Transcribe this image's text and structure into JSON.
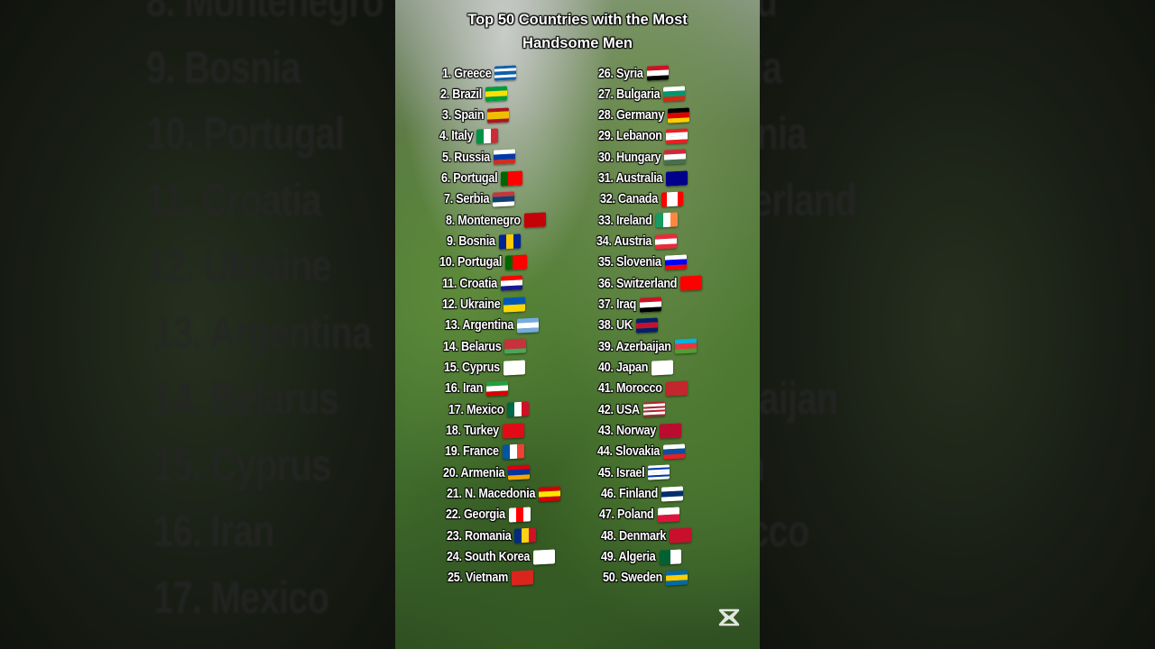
{
  "title_line1": "Top 50 Countries with the Most",
  "title_line2": "Handsome Men",
  "watermark_icon": "capcut-logo-icon",
  "countries": [
    {
      "label": "1. Greece",
      "flag": {
        "dir": "h",
        "colors": [
          "#0d5eaf",
          "#ffffff",
          "#0d5eaf",
          "#ffffff",
          "#0d5eaf"
        ]
      }
    },
    {
      "label": "2. Brazil",
      "flag": {
        "dir": "h",
        "colors": [
          "#009c3b",
          "#ffdf00",
          "#009c3b"
        ]
      }
    },
    {
      "label": "3. Spain",
      "flag": {
        "dir": "h",
        "colors": [
          "#aa151b",
          "#f1bf00",
          "#f1bf00",
          "#aa151b"
        ]
      }
    },
    {
      "label": "4. Italy",
      "flag": {
        "dir": "v",
        "colors": [
          "#009246",
          "#ffffff",
          "#ce2b37"
        ]
      }
    },
    {
      "label": "5. Russia",
      "flag": {
        "dir": "h",
        "colors": [
          "#ffffff",
          "#0039a6",
          "#d52b1e"
        ]
      }
    },
    {
      "label": "6. Portugal",
      "flag": {
        "dir": "v",
        "colors": [
          "#006600",
          "#ff0000",
          "#ff0000"
        ]
      }
    },
    {
      "label": "7. Serbia",
      "flag": {
        "dir": "h",
        "colors": [
          "#c6363c",
          "#0c4076",
          "#ffffff"
        ]
      }
    },
    {
      "label": "8. Montenegro",
      "flag": {
        "dir": "h",
        "colors": [
          "#c40308"
        ]
      }
    },
    {
      "label": "9. Bosnia",
      "flag": {
        "dir": "v",
        "colors": [
          "#002395",
          "#fecb00",
          "#002395"
        ]
      }
    },
    {
      "label": "10. Portugal",
      "flag": {
        "dir": "v",
        "colors": [
          "#006600",
          "#ff0000",
          "#ff0000"
        ]
      }
    },
    {
      "label": "11. Croatia",
      "flag": {
        "dir": "h",
        "colors": [
          "#ff0000",
          "#ffffff",
          "#171796"
        ]
      }
    },
    {
      "label": "12. Ukraine",
      "flag": {
        "dir": "h",
        "colors": [
          "#0057b7",
          "#ffd700"
        ]
      }
    },
    {
      "label": "13. Argentina",
      "flag": {
        "dir": "h",
        "colors": [
          "#74acdf",
          "#ffffff",
          "#74acdf"
        ]
      }
    },
    {
      "label": "14. Belarus",
      "flag": {
        "dir": "h",
        "colors": [
          "#c8313e",
          "#c8313e",
          "#4aa657"
        ]
      }
    },
    {
      "label": "15. Cyprus",
      "flag": {
        "dir": "h",
        "colors": [
          "#ffffff"
        ]
      }
    },
    {
      "label": "16. Iran",
      "flag": {
        "dir": "h",
        "colors": [
          "#239f40",
          "#ffffff",
          "#da0000"
        ]
      }
    },
    {
      "label": "17. Mexico",
      "flag": {
        "dir": "v",
        "colors": [
          "#006847",
          "#ffffff",
          "#ce1126"
        ]
      }
    },
    {
      "label": "18. Turkey",
      "flag": {
        "dir": "h",
        "colors": [
          "#e30a17"
        ]
      }
    },
    {
      "label": "19. France",
      "flag": {
        "dir": "v",
        "colors": [
          "#0055a4",
          "#ffffff",
          "#ef4135"
        ]
      }
    },
    {
      "label": "20. Armenia",
      "flag": {
        "dir": "h",
        "colors": [
          "#d90012",
          "#0033a0",
          "#f2a800"
        ]
      }
    },
    {
      "label": "21. N. Macedonia",
      "flag": {
        "dir": "h",
        "colors": [
          "#d20000",
          "#ffe600",
          "#d20000"
        ]
      }
    },
    {
      "label": "22. Georgia",
      "flag": {
        "dir": "v",
        "colors": [
          "#ffffff",
          "#ff0000",
          "#ffffff"
        ]
      }
    },
    {
      "label": "23. Romania",
      "flag": {
        "dir": "v",
        "colors": [
          "#002b7f",
          "#fcd116",
          "#ce1126"
        ]
      }
    },
    {
      "label": "24. South Korea",
      "flag": {
        "dir": "h",
        "colors": [
          "#ffffff"
        ]
      }
    },
    {
      "label": "25. Vietnam",
      "flag": {
        "dir": "h",
        "colors": [
          "#da251d"
        ]
      }
    },
    {
      "label": "26. Syria",
      "flag": {
        "dir": "h",
        "colors": [
          "#ce1126",
          "#ffffff",
          "#000000"
        ]
      }
    },
    {
      "label": "27. Bulgaria",
      "flag": {
        "dir": "h",
        "colors": [
          "#ffffff",
          "#00966e",
          "#d62612"
        ]
      }
    },
    {
      "label": "28. Germany",
      "flag": {
        "dir": "h",
        "colors": [
          "#000000",
          "#dd0000",
          "#ffce00"
        ]
      }
    },
    {
      "label": "29. Lebanon",
      "flag": {
        "dir": "h",
        "colors": [
          "#ed1c24",
          "#ffffff",
          "#ffffff",
          "#ed1c24"
        ]
      }
    },
    {
      "label": "30. Hungary",
      "flag": {
        "dir": "h",
        "colors": [
          "#ce2939",
          "#ffffff",
          "#477050"
        ]
      }
    },
    {
      "label": "31. Australia",
      "flag": {
        "dir": "h",
        "colors": [
          "#00008b"
        ]
      }
    },
    {
      "label": "32. Canada",
      "flag": {
        "dir": "v",
        "colors": [
          "#ff0000",
          "#ffffff",
          "#ffffff",
          "#ff0000"
        ]
      }
    },
    {
      "label": "33. Ireland",
      "flag": {
        "dir": "v",
        "colors": [
          "#169b62",
          "#ffffff",
          "#ff883e"
        ]
      }
    },
    {
      "label": "34. Austria",
      "flag": {
        "dir": "h",
        "colors": [
          "#ed2939",
          "#ffffff",
          "#ed2939"
        ]
      }
    },
    {
      "label": "35. Slovenia",
      "flag": {
        "dir": "h",
        "colors": [
          "#ffffff",
          "#0000ff",
          "#ff0000"
        ]
      }
    },
    {
      "label": "36. Switzerland",
      "flag": {
        "dir": "h",
        "colors": [
          "#ff0000"
        ]
      }
    },
    {
      "label": "37. Iraq",
      "flag": {
        "dir": "h",
        "colors": [
          "#ce1126",
          "#ffffff",
          "#000000"
        ]
      }
    },
    {
      "label": "38. UK",
      "flag": {
        "dir": "h",
        "colors": [
          "#012169",
          "#c8102e",
          "#012169"
        ]
      }
    },
    {
      "label": "39. Azerbaijan",
      "flag": {
        "dir": "h",
        "colors": [
          "#00b5e2",
          "#ef3340",
          "#509e2f"
        ]
      }
    },
    {
      "label": "40. Japan",
      "flag": {
        "dir": "h",
        "colors": [
          "#ffffff"
        ]
      }
    },
    {
      "label": "41. Morocco",
      "flag": {
        "dir": "h",
        "colors": [
          "#c1272d"
        ]
      }
    },
    {
      "label": "42. USA",
      "flag": {
        "dir": "h",
        "colors": [
          "#b22234",
          "#ffffff",
          "#b22234",
          "#ffffff",
          "#b22234",
          "#ffffff",
          "#b22234"
        ]
      }
    },
    {
      "label": "43. Norway",
      "flag": {
        "dir": "h",
        "colors": [
          "#ba0c2f"
        ]
      }
    },
    {
      "label": "44. Slovakia",
      "flag": {
        "dir": "h",
        "colors": [
          "#ffffff",
          "#0b4ea2",
          "#ee1c25"
        ]
      }
    },
    {
      "label": "45. Israel",
      "flag": {
        "dir": "h",
        "colors": [
          "#ffffff",
          "#0038b8",
          "#ffffff",
          "#ffffff",
          "#0038b8",
          "#ffffff"
        ]
      }
    },
    {
      "label": "46. Finland",
      "flag": {
        "dir": "h",
        "colors": [
          "#ffffff",
          "#002f6c",
          "#ffffff"
        ]
      }
    },
    {
      "label": "47. Poland",
      "flag": {
        "dir": "h",
        "colors": [
          "#ffffff",
          "#dc143c"
        ]
      }
    },
    {
      "label": "48. Denmark",
      "flag": {
        "dir": "h",
        "colors": [
          "#c8102e"
        ]
      }
    },
    {
      "label": "49. Algeria",
      "flag": {
        "dir": "v",
        "colors": [
          "#006233",
          "#ffffff"
        ]
      }
    },
    {
      "label": "50. Sweden",
      "flag": {
        "dir": "h",
        "colors": [
          "#006aa7",
          "#fecc00",
          "#006aa7"
        ]
      }
    }
  ]
}
